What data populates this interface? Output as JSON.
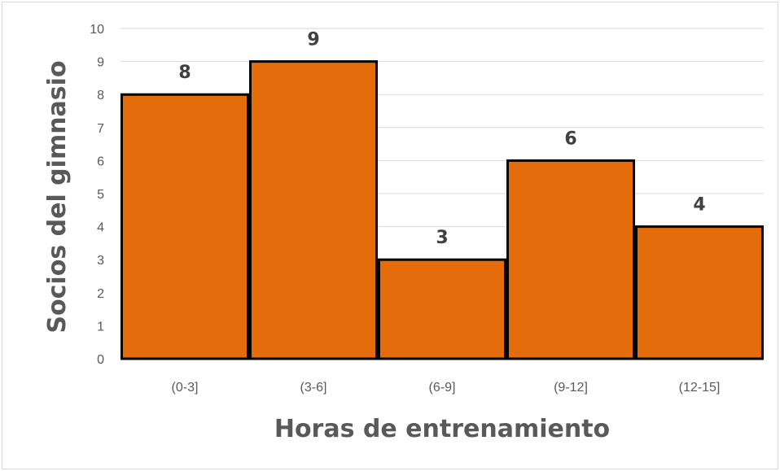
{
  "chart_data": {
    "type": "bar",
    "categories": [
      "(0-3]",
      "(3-6]",
      "(6-9]",
      "(9-12]",
      "(12-15]"
    ],
    "values": [
      8,
      9,
      3,
      6,
      4
    ],
    "data_labels": [
      "8",
      "9",
      "3",
      "6",
      "4"
    ],
    "xlabel": "Horas de entrenamiento",
    "ylabel": "Socios del gimnasio",
    "ylim": [
      0,
      10
    ],
    "yticks": [
      "0",
      "1",
      "2",
      "3",
      "4",
      "5",
      "6",
      "7",
      "8",
      "9",
      "10"
    ],
    "grid": true,
    "legend": "none",
    "bar_color": "#E46C0A",
    "bar_border_color": "#000000",
    "gridline_color": "#D9D9D9"
  }
}
